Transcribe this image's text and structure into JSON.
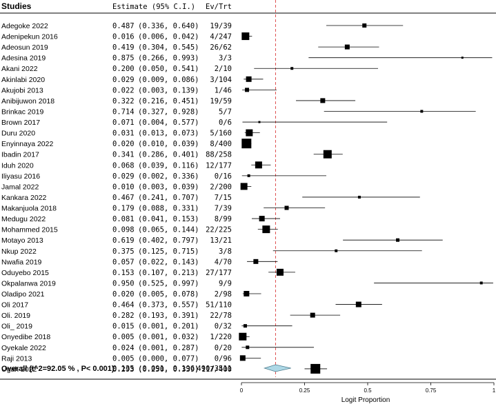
{
  "chart_data": {
    "type": "forest",
    "headers": {
      "studies": "Studies",
      "estimate": "Estimate (95% C.I.)",
      "events": "Ev/Trt"
    },
    "xlabel": "Logit Proportion",
    "xlim": [
      0,
      1
    ],
    "ticks": [
      {
        "value": 0,
        "label": "0"
      },
      {
        "value": 0.25,
        "label": "0.25"
      },
      {
        "value": 0.5,
        "label": "0.5"
      },
      {
        "value": 0.75,
        "label": "0.75"
      },
      {
        "value": 1,
        "label": "1"
      }
    ],
    "reference_line": 0.135,
    "studies": [
      {
        "name": "Adegoke 2022",
        "est": 0.487,
        "lo": 0.336,
        "hi": 0.64,
        "est_text": "0.487",
        "ci_text": "(0.336, 0.640)",
        "ev": "19/39",
        "n": 39
      },
      {
        "name": "Adenipekun 2016",
        "est": 0.016,
        "lo": 0.006,
        "hi": 0.042,
        "est_text": "0.016",
        "ci_text": "(0.006, 0.042)",
        "ev": "4/247",
        "n": 247
      },
      {
        "name": "Adeosun 2019",
        "est": 0.419,
        "lo": 0.304,
        "hi": 0.545,
        "est_text": "0.419",
        "ci_text": "(0.304, 0.545)",
        "ev": "26/62",
        "n": 62
      },
      {
        "name": "Adesina 2019",
        "est": 0.875,
        "lo": 0.266,
        "hi": 0.993,
        "est_text": "0.875",
        "ci_text": "(0.266, 0.993)",
        "ev": "3/3",
        "n": 3
      },
      {
        "name": "Akani 2022",
        "est": 0.2,
        "lo": 0.05,
        "hi": 0.541,
        "est_text": "0.200",
        "ci_text": "(0.050, 0.541)",
        "ev": "2/10",
        "n": 10
      },
      {
        "name": "Akinlabi 2020",
        "est": 0.029,
        "lo": 0.009,
        "hi": 0.086,
        "est_text": "0.029",
        "ci_text": "(0.009, 0.086)",
        "ev": "3/104",
        "n": 104
      },
      {
        "name": "Akujobi 2013",
        "est": 0.022,
        "lo": 0.003,
        "hi": 0.139,
        "est_text": "0.022",
        "ci_text": "(0.003, 0.139)",
        "ev": "1/46",
        "n": 46
      },
      {
        "name": "Anibijuwon 2018",
        "est": 0.322,
        "lo": 0.216,
        "hi": 0.451,
        "est_text": "0.322",
        "ci_text": "(0.216, 0.451)",
        "ev": "19/59",
        "n": 59
      },
      {
        "name": "Brinkac 2019",
        "est": 0.714,
        "lo": 0.327,
        "hi": 0.928,
        "est_text": "0.714",
        "ci_text": "(0.327, 0.928)",
        "ev": "5/7",
        "n": 7
      },
      {
        "name": "Brown 2017",
        "est": 0.071,
        "lo": 0.004,
        "hi": 0.577,
        "est_text": "0.071",
        "ci_text": "(0.004, 0.577)",
        "ev": "0/6",
        "n": 6
      },
      {
        "name": "Duru 2020",
        "est": 0.031,
        "lo": 0.013,
        "hi": 0.073,
        "est_text": "0.031",
        "ci_text": "(0.013, 0.073)",
        "ev": "5/160",
        "n": 160
      },
      {
        "name": "Enyinnaya 2022",
        "est": 0.02,
        "lo": 0.01,
        "hi": 0.039,
        "est_text": "0.020",
        "ci_text": "(0.010, 0.039)",
        "ev": "8/400",
        "n": 400
      },
      {
        "name": "Ibadin 2017",
        "est": 0.341,
        "lo": 0.286,
        "hi": 0.401,
        "est_text": "0.341",
        "ci_text": "(0.286, 0.401)",
        "ev": "88/258",
        "n": 258
      },
      {
        "name": "Iduh 2020",
        "est": 0.068,
        "lo": 0.039,
        "hi": 0.116,
        "est_text": "0.068",
        "ci_text": "(0.039, 0.116)",
        "ev": "12/177",
        "n": 177
      },
      {
        "name": "Iliyasu 2016",
        "est": 0.029,
        "lo": 0.002,
        "hi": 0.336,
        "est_text": "0.029",
        "ci_text": "(0.002, 0.336)",
        "ev": "0/16",
        "n": 16
      },
      {
        "name": "Jamal 2022",
        "est": 0.01,
        "lo": 0.003,
        "hi": 0.039,
        "est_text": "0.010",
        "ci_text": "(0.003, 0.039)",
        "ev": "2/200",
        "n": 200
      },
      {
        "name": "Kankara 2022",
        "est": 0.467,
        "lo": 0.241,
        "hi": 0.707,
        "est_text": "0.467",
        "ci_text": "(0.241, 0.707)",
        "ev": "7/15",
        "n": 15
      },
      {
        "name": "Makanjuola 2018",
        "est": 0.179,
        "lo": 0.088,
        "hi": 0.331,
        "est_text": "0.179",
        "ci_text": "(0.088, 0.331)",
        "ev": "7/39",
        "n": 39
      },
      {
        "name": "Medugu 2022",
        "est": 0.081,
        "lo": 0.041,
        "hi": 0.153,
        "est_text": "0.081",
        "ci_text": "(0.041, 0.153)",
        "ev": "8/99",
        "n": 99
      },
      {
        "name": "Mohammed 2015",
        "est": 0.098,
        "lo": 0.065,
        "hi": 0.144,
        "est_text": "0.098",
        "ci_text": "(0.065, 0.144)",
        "ev": "22/225",
        "n": 225
      },
      {
        "name": "Motayo 2013",
        "est": 0.619,
        "lo": 0.402,
        "hi": 0.797,
        "est_text": "0.619",
        "ci_text": "(0.402, 0.797)",
        "ev": "13/21",
        "n": 21
      },
      {
        "name": "Nkup 2022",
        "est": 0.375,
        "lo": 0.125,
        "hi": 0.715,
        "est_text": "0.375",
        "ci_text": "(0.125, 0.715)",
        "ev": "3/8",
        "n": 8
      },
      {
        "name": "Nwafia 2019",
        "est": 0.057,
        "lo": 0.022,
        "hi": 0.143,
        "est_text": "0.057",
        "ci_text": "(0.022, 0.143)",
        "ev": "4/70",
        "n": 70
      },
      {
        "name": "Oduyebo 2015",
        "est": 0.153,
        "lo": 0.107,
        "hi": 0.213,
        "est_text": "0.153",
        "ci_text": "(0.107, 0.213)",
        "ev": "27/177",
        "n": 177
      },
      {
        "name": "Okpalanwa 2019",
        "est": 0.95,
        "lo": 0.525,
        "hi": 0.997,
        "est_text": "0.950",
        "ci_text": "(0.525, 0.997)",
        "ev": "9/9",
        "n": 9
      },
      {
        "name": "Oladipo 2021",
        "est": 0.02,
        "lo": 0.005,
        "hi": 0.078,
        "est_text": "0.020",
        "ci_text": "(0.005, 0.078)",
        "ev": "2/98",
        "n": 98
      },
      {
        "name": "Oli 2017",
        "est": 0.464,
        "lo": 0.373,
        "hi": 0.557,
        "est_text": "0.464",
        "ci_text": "(0.373, 0.557)",
        "ev": "51/110",
        "n": 110
      },
      {
        "name": "Oli. 2019",
        "est": 0.282,
        "lo": 0.193,
        "hi": 0.391,
        "est_text": "0.282",
        "ci_text": "(0.193, 0.391)",
        "ev": "22/78",
        "n": 78
      },
      {
        "name": "Oli_ 2019",
        "est": 0.015,
        "lo": 0.001,
        "hi": 0.201,
        "est_text": "0.015",
        "ci_text": "(0.001, 0.201)",
        "ev": "0/32",
        "n": 32
      },
      {
        "name": "Onyedibe 2018",
        "est": 0.005,
        "lo": 0.001,
        "hi": 0.032,
        "est_text": "0.005",
        "ci_text": "(0.001, 0.032)",
        "ev": "1/220",
        "n": 220
      },
      {
        "name": "Oyekale 2022",
        "est": 0.024,
        "lo": 0.001,
        "hi": 0.287,
        "est_text": "0.024",
        "ci_text": "(0.001, 0.287)",
        "ev": "0/20",
        "n": 20
      },
      {
        "name": "Raji 2013",
        "est": 0.005,
        "lo": 0.0,
        "hi": 0.077,
        "est_text": "0.005",
        "ci_text": "(0.000, 0.077)",
        "ev": "0/96",
        "n": 96
      },
      {
        "name": "Ugah 2022",
        "est": 0.293,
        "lo": 0.25,
        "hi": 0.339,
        "est_text": "0.293",
        "ci_text": "(0.250, 0.339)",
        "ev": "117/400",
        "n": 400
      }
    ],
    "overall": {
      "label": "Overall (I^2=92.05 % , P< 0.001)",
      "est": 0.135,
      "lo": 0.091,
      "hi": 0.196,
      "est_text": "0.135",
      "ci_text": "(0.091, 0.196)",
      "ev": "490/3511"
    },
    "colors": {
      "reference_line": "#d62728",
      "diamond_fill": "#add8e6",
      "diamond_stroke": "#4a7a8c",
      "marker": "#000000"
    }
  }
}
